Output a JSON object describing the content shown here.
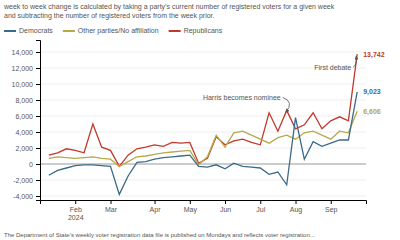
{
  "chart_data": {
    "type": "line",
    "title": "week to week change is calculated by taking a party’s current number of registered voters for a given week\nand subtracting the number of registered voters from the week prior.",
    "caption": "The Department of State’s weekly voter registration data file is published on Mondays and reflects voter registration...",
    "categories": [
      null,
      null,
      null,
      "Feb\n2024",
      null,
      null,
      null,
      "Mar",
      null,
      null,
      null,
      null,
      "Apr",
      null,
      null,
      null,
      "May",
      null,
      null,
      null,
      "Jun",
      null,
      null,
      null,
      "Jul",
      null,
      null,
      null,
      "Aug",
      null,
      null,
      null,
      "Sep",
      null,
      null,
      null
    ],
    "series": [
      {
        "name": "Democrats",
        "color": "#3a6b8a",
        "end_label": "9,023",
        "values": [
          -1400,
          -800,
          -500,
          -200,
          -100,
          -100,
          -200,
          -300,
          -3800,
          -1500,
          200,
          300,
          600,
          800,
          900,
          1000,
          1100,
          -300,
          -400,
          -100,
          -600,
          100,
          -300,
          -400,
          -500,
          -1300,
          -1000,
          -2600,
          5800,
          600,
          2800,
          2200,
          2600,
          3000,
          3000,
          9023
        ]
      },
      {
        "name": "Other parties/No affiliation",
        "color": "#b8a84a",
        "end_label": "6,606",
        "values": [
          700,
          900,
          800,
          700,
          800,
          900,
          700,
          600,
          -300,
          300,
          900,
          1000,
          1200,
          1400,
          1500,
          1600,
          1700,
          -100,
          900,
          3600,
          2100,
          3900,
          4100,
          3600,
          3100,
          2600,
          3300,
          3600,
          3100,
          3900,
          4100,
          3600,
          3100,
          4100,
          3900,
          6606
        ]
      },
      {
        "name": "Republicans",
        "color": "#c0392b",
        "end_label": "13,742",
        "values": [
          1100,
          1400,
          1900,
          1700,
          1400,
          5000,
          2100,
          1700,
          -300,
          1100,
          1900,
          2100,
          2400,
          2200,
          2700,
          2600,
          2700,
          100,
          700,
          3400,
          2400,
          2900,
          3100,
          2700,
          2400,
          6400,
          4100,
          6700,
          4400,
          4900,
          6400,
          4400,
          5400,
          5900,
          5400,
          13742
        ]
      }
    ],
    "ylim": [
      -4500,
      15500
    ],
    "yticks": [
      {
        "value": -4000,
        "label": "-4,000"
      },
      {
        "value": -2000,
        "label": "-2,000"
      },
      0,
      {
        "value": 2000,
        "label": "2,000"
      },
      {
        "value": 4000,
        "label": "4,000"
      },
      {
        "value": 6000,
        "label": "6,000"
      },
      {
        "value": 8000,
        "label": "8,000"
      },
      {
        "value": 10000,
        "label": "10,000"
      },
      {
        "value": 12000,
        "label": "12,000"
      },
      {
        "value": 14000,
        "label": "14,000"
      }
    ],
    "annotations": [
      {
        "text": "Harris becomes nominee",
        "x": 27,
        "y": 6200
      },
      {
        "text": "First debate",
        "x": 35,
        "y": 13742
      }
    ],
    "grid": true,
    "legend": "upper left"
  }
}
